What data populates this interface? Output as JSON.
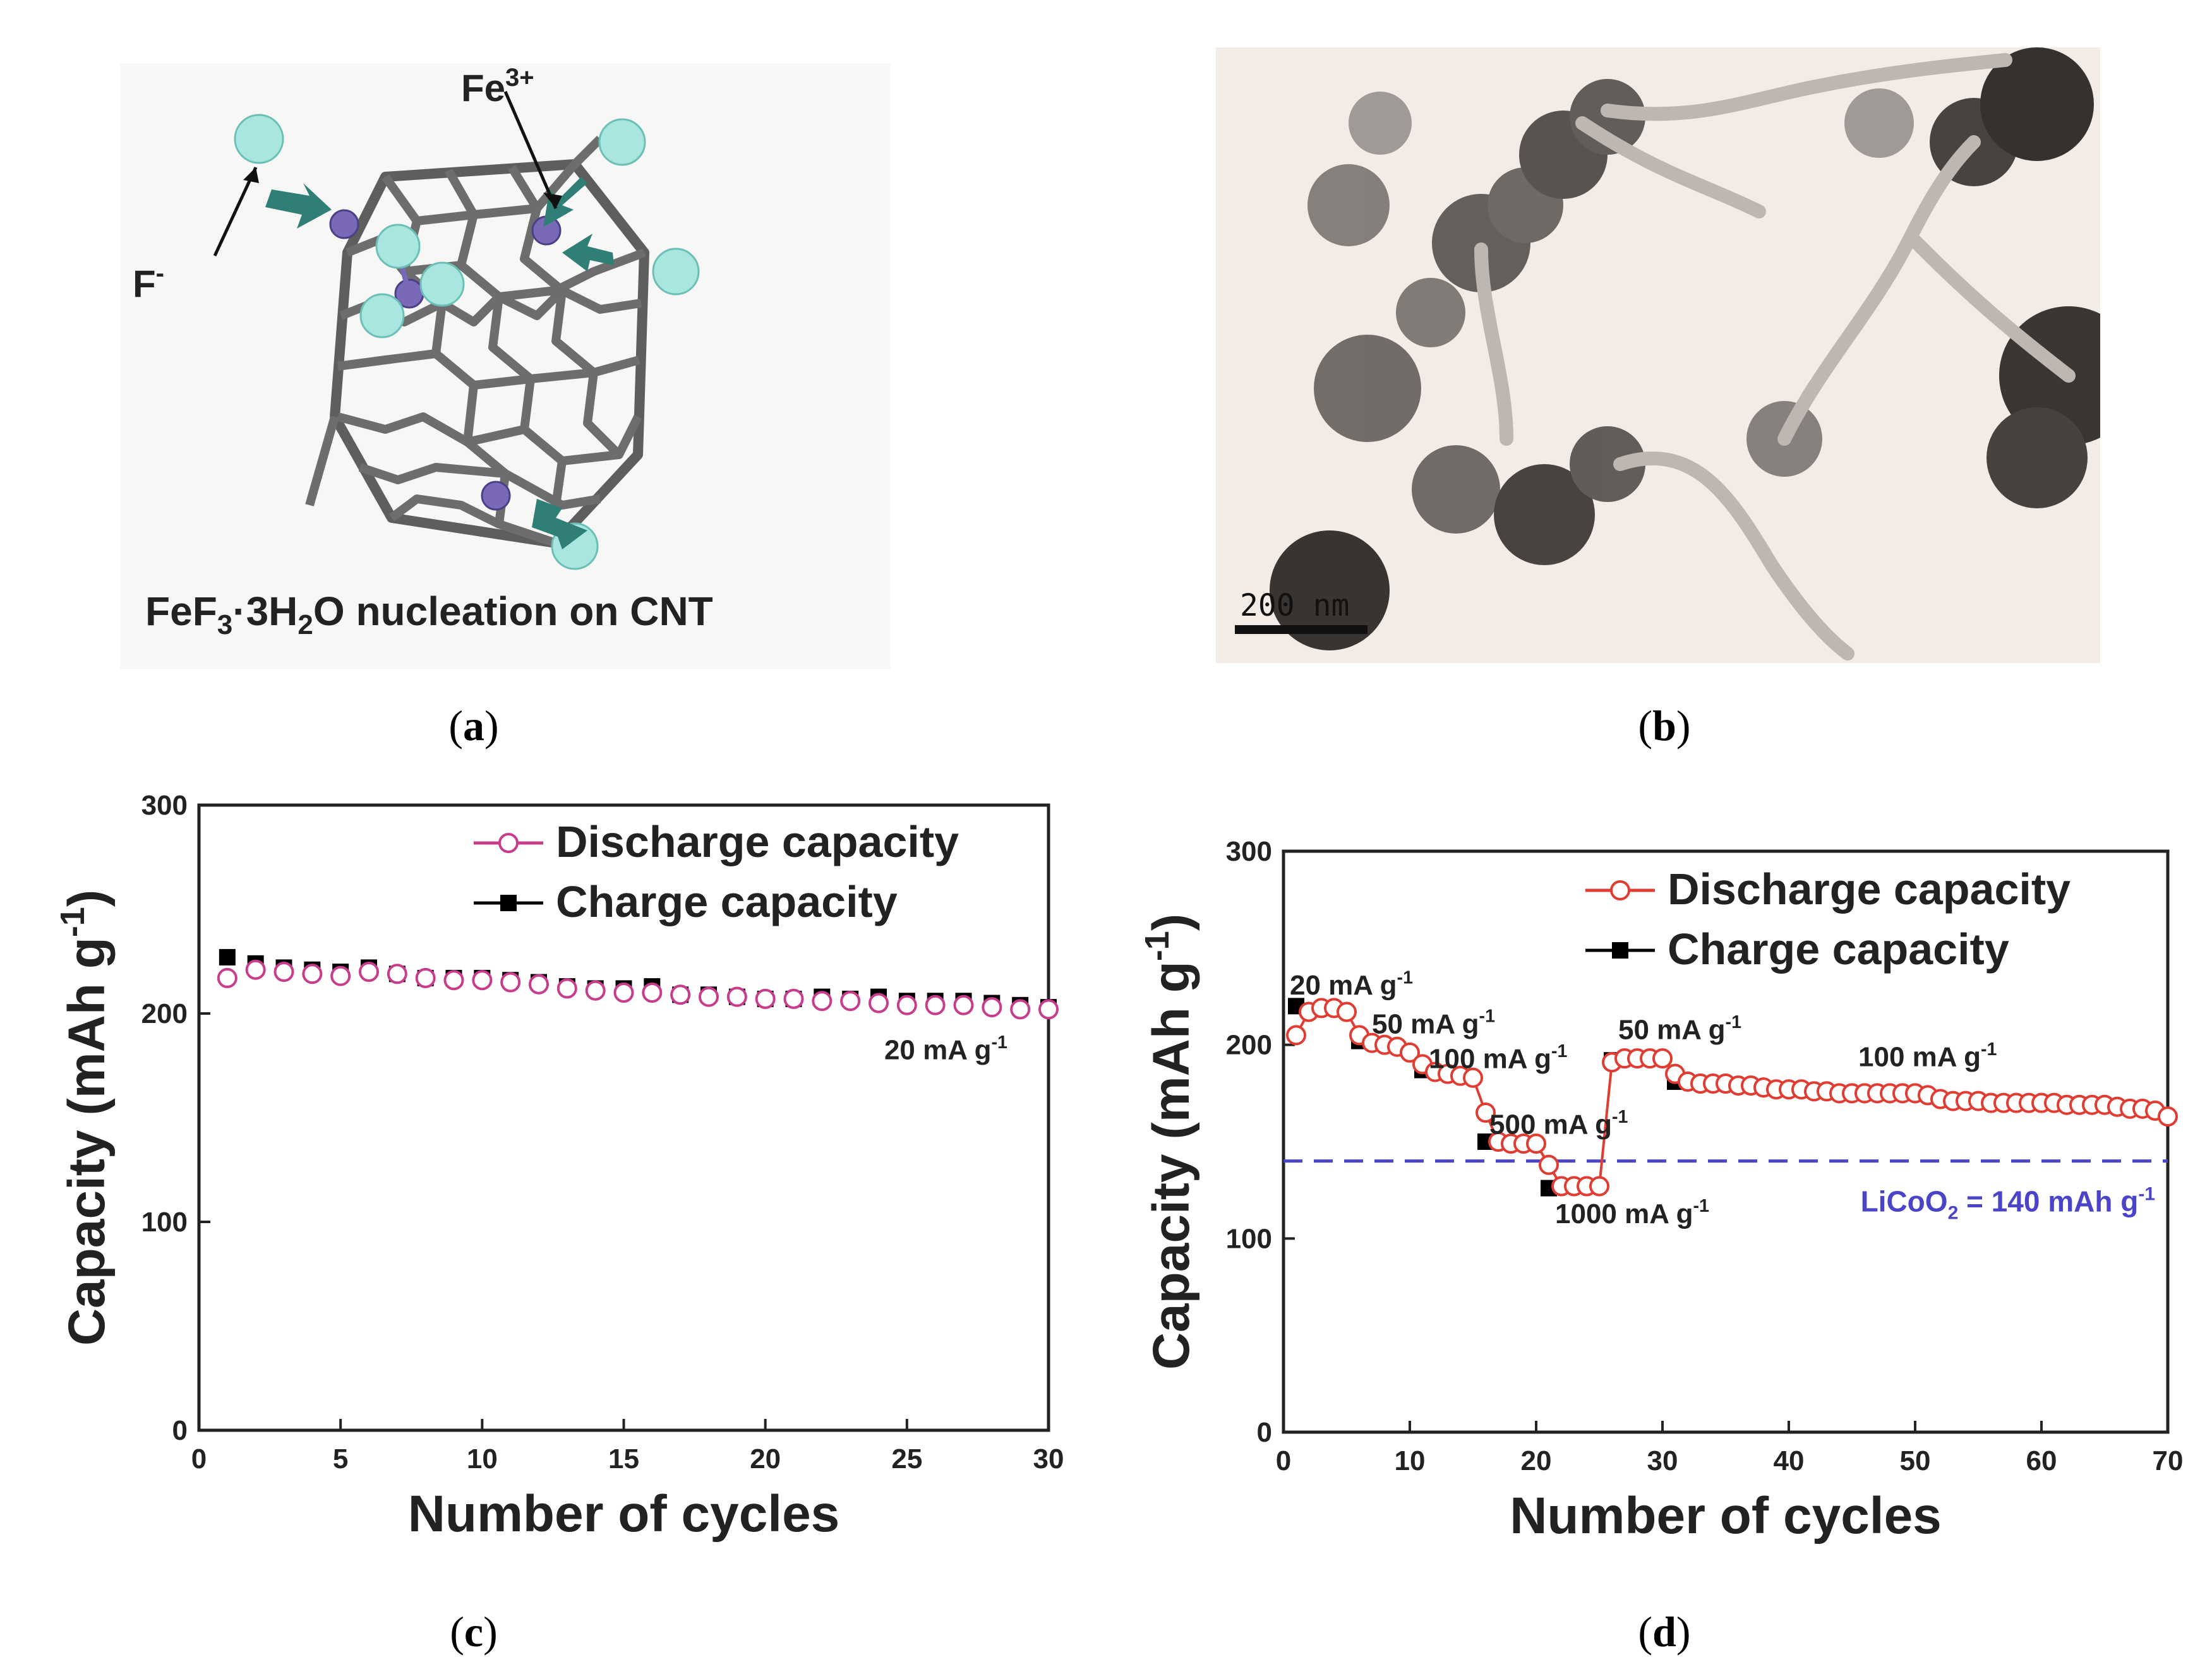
{
  "panels": {
    "a": {
      "label_open": "(",
      "label_letter": "a",
      "label_close": ")",
      "fe_label": "Fe",
      "fe_charge": "3+",
      "f_label": "F",
      "f_charge": "-",
      "caption_p1": "FeF",
      "caption_sub1": "3",
      "caption_p2": "·3H",
      "caption_sub2": "2",
      "caption_p3": "O nucleation on CNT"
    },
    "b": {
      "label_open": "(",
      "label_letter": "b",
      "label_close": ")",
      "scale_bar": "200 nm"
    },
    "c": {
      "label_open": "(",
      "label_letter": "c",
      "label_close": ")"
    },
    "d": {
      "label_open": "(",
      "label_letter": "d",
      "label_close": ")"
    }
  },
  "chart_data": [
    {
      "id": "c",
      "type": "scatter",
      "xlabel": "Number of cycles",
      "ylabel": "Capacity (mAh g",
      "ylabel_sup": "-1",
      "ylabel_close": ")",
      "xlim": [
        0,
        30
      ],
      "ylim": [
        0,
        300
      ],
      "xticks": [
        0,
        5,
        10,
        15,
        20,
        25,
        30
      ],
      "yticks": [
        0,
        100,
        200,
        300
      ],
      "legend": [
        {
          "name": "Discharge capacity",
          "color": "#c83c8c",
          "marker": "open-circle"
        },
        {
          "name": "Charge capacity",
          "color": "#000000",
          "marker": "filled-square"
        }
      ],
      "series": [
        {
          "name": "Discharge capacity",
          "x": [
            1,
            2,
            3,
            4,
            5,
            6,
            7,
            8,
            9,
            10,
            11,
            12,
            13,
            14,
            15,
            16,
            17,
            18,
            19,
            20,
            21,
            22,
            23,
            24,
            25,
            26,
            27,
            28,
            29,
            30
          ],
          "y": [
            217,
            221,
            220,
            219,
            218,
            220,
            219,
            217,
            216,
            216,
            215,
            214,
            212,
            211,
            210,
            210,
            209,
            208,
            208,
            207,
            207,
            206,
            206,
            205,
            204,
            204,
            204,
            203,
            202,
            202
          ]
        },
        {
          "name": "Charge capacity",
          "x": [
            1,
            2,
            3,
            4,
            5,
            6,
            7,
            8,
            9,
            10,
            11,
            12,
            13,
            14,
            15,
            16,
            17,
            18,
            19,
            20,
            21,
            22,
            23,
            24,
            25,
            26,
            27,
            28,
            29,
            30
          ],
          "y": [
            227,
            224,
            222,
            221,
            220,
            222,
            219,
            217,
            217,
            217,
            216,
            215,
            213,
            212,
            212,
            213,
            209,
            209,
            208,
            207,
            207,
            208,
            207,
            208,
            206,
            206,
            206,
            205,
            204,
            203
          ]
        }
      ],
      "annotations": [
        {
          "text": "20 mA g",
          "sup": "-1",
          "x": 24.2,
          "y": 178
        }
      ]
    },
    {
      "id": "d",
      "type": "scatter",
      "xlabel": "Number of cycles",
      "ylabel": "Capacity (mAh g",
      "ylabel_sup": "-1",
      "ylabel_close": ")",
      "xlim": [
        0,
        70
      ],
      "ylim": [
        0,
        300
      ],
      "xticks": [
        0,
        10,
        20,
        30,
        40,
        50,
        60,
        70
      ],
      "yticks": [
        0,
        100,
        200,
        300
      ],
      "legend": [
        {
          "name": "Discharge capacity",
          "color": "#e03c32",
          "marker": "open-circle"
        },
        {
          "name": "Charge capacity",
          "color": "#000000",
          "marker": "filled-square"
        }
      ],
      "series": [
        {
          "name": "Discharge capacity",
          "x": [
            1,
            2,
            3,
            4,
            5,
            6,
            7,
            8,
            9,
            10,
            11,
            12,
            13,
            14,
            15,
            16,
            17,
            18,
            19,
            20,
            21,
            22,
            23,
            24,
            25,
            26,
            27,
            28,
            29,
            30,
            31,
            32,
            33,
            34,
            35,
            36,
            37,
            38,
            39,
            40,
            41,
            42,
            43,
            44,
            45,
            46,
            47,
            48,
            49,
            50,
            51,
            52,
            53,
            54,
            55,
            56,
            57,
            58,
            59,
            60,
            61,
            62,
            63,
            64,
            65,
            66,
            67,
            68,
            69,
            70
          ],
          "y": [
            205,
            217,
            219,
            219,
            217,
            205,
            201,
            200,
            199,
            196,
            190,
            186,
            185,
            184,
            183,
            165,
            150,
            149,
            149,
            149,
            138,
            127,
            127,
            127,
            127,
            191,
            193,
            193,
            193,
            193,
            185,
            181,
            180,
            180,
            180,
            179,
            179,
            178,
            177,
            177,
            177,
            176,
            176,
            175,
            175,
            175,
            175,
            175,
            175,
            175,
            174,
            172,
            171,
            171,
            171,
            170,
            170,
            170,
            170,
            170,
            170,
            169,
            169,
            169,
            169,
            168,
            167,
            167,
            166,
            163
          ]
        },
        {
          "name": "Charge capacity",
          "x": [
            1,
            6,
            11,
            16,
            21,
            26,
            31
          ],
          "y": [
            220,
            202,
            187,
            150,
            126,
            192,
            181
          ]
        }
      ],
      "reference_line": {
        "value": 140,
        "color": "#4a44c8",
        "label": "LiCoO",
        "label_sub": "2",
        "label_rest": " = 140 mAh g",
        "label_sup": "-1"
      },
      "annotations": [
        {
          "text": "20 mA g",
          "sup": "-1",
          "x": 0.5,
          "y": 226
        },
        {
          "text": "50 mA g",
          "sup": "-1",
          "x": 7,
          "y": 206
        },
        {
          "text": "100 mA g",
          "sup": "-1",
          "x": 11.5,
          "y": 188
        },
        {
          "text": "500 mA g",
          "sup": "-1",
          "x": 16.3,
          "y": 154
        },
        {
          "text": "1000 mA g",
          "sup": "-1",
          "x": 21.5,
          "y": 108
        },
        {
          "text": "50 mA g",
          "sup": "-1",
          "x": 26.5,
          "y": 203
        },
        {
          "text": "100 mA g",
          "sup": "-1",
          "x": 45.5,
          "y": 189
        }
      ]
    }
  ]
}
